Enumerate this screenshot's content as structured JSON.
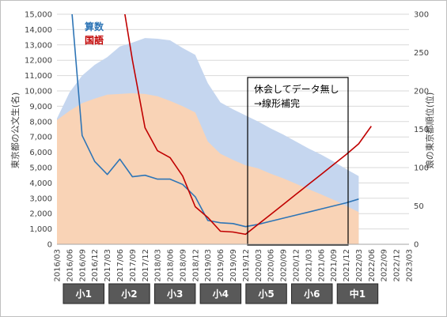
{
  "chart_data": {
    "type": "area",
    "x": [
      "2016/03",
      "2016/06",
      "2016/09",
      "2016/12",
      "2017/03",
      "2017/06",
      "2017/09",
      "2017/12",
      "2018/03",
      "2018/06",
      "2018/09",
      "2018/12",
      "2019/03",
      "2019/06",
      "2019/09",
      "2019/12",
      "2020/03",
      "2020/06",
      "2020/09",
      "2020/12",
      "2021/03",
      "2021/06",
      "2021/09",
      "2021/12",
      "2022/03",
      "2022/06",
      "2022/09",
      "2022/12",
      "2023/03"
    ],
    "ylim_left": [
      0,
      15000
    ],
    "ylim_right": [
      0,
      300
    ],
    "yticks_left": [
      "0",
      "1,000",
      "2,000",
      "3,000",
      "4,000",
      "5,000",
      "6,000",
      "7,000",
      "8,000",
      "9,000",
      "10,000",
      "11,000",
      "12,000",
      "13,000",
      "14,000",
      "15,000"
    ],
    "yticks_right": [
      "0",
      "50",
      "100",
      "150",
      "200",
      "250",
      "300"
    ],
    "ylabel_left": "東京都の公文生(名)",
    "ylabel_right": "娘の東京都順位(位)",
    "series": [
      {
        "name": "",
        "axis": "left",
        "type": "area",
        "color": "#c5d6ef",
        "values": [
          8200,
          9900,
          11000,
          11700,
          12200,
          12900,
          13150,
          13450,
          13400,
          13300,
          12800,
          12350,
          10500,
          9250,
          8800,
          8400,
          8000,
          7550,
          7150,
          6700,
          6250,
          5850,
          5400,
          4900,
          4450,
          null,
          null,
          null,
          null
        ]
      },
      {
        "name": "",
        "axis": "left",
        "type": "area",
        "color": "#f9d3b6",
        "values": [
          8100,
          8700,
          9200,
          9500,
          9750,
          9800,
          9850,
          9800,
          9650,
          9350,
          9000,
          8600,
          6700,
          5900,
          5500,
          5150,
          4950,
          4600,
          4300,
          3950,
          3600,
          3250,
          2900,
          2500,
          2100,
          null,
          null,
          null,
          null
        ]
      },
      {
        "name": "算数",
        "axis": "right",
        "type": "line",
        "color": "#2e75b6",
        "values": [
          null,
          340,
          142,
          108,
          91,
          111,
          88,
          90,
          85,
          85,
          78,
          62,
          31,
          28,
          27,
          23,
          26,
          30,
          34,
          38,
          42,
          46,
          50,
          54,
          59,
          null,
          null,
          null,
          null
        ]
      },
      {
        "name": "国語",
        "axis": "right",
        "type": "line",
        "color": "#c00000",
        "values": [
          null,
          null,
          null,
          null,
          null,
          340,
          240,
          152,
          122,
          113,
          89,
          49,
          35,
          17,
          16,
          13,
          26,
          39,
          52,
          65,
          78,
          91,
          104,
          117,
          131,
          154,
          null,
          null,
          null
        ]
      }
    ],
    "annotation": "休会してデータ無し\n→線形補完",
    "annotation_lines": [
      "休会してデータ無し",
      "→線形補完"
    ],
    "grades": [
      "小1",
      "小2",
      "小3",
      "小4",
      "小5",
      "小6",
      "中1"
    ],
    "legend_position": "top-left",
    "grid": true
  }
}
